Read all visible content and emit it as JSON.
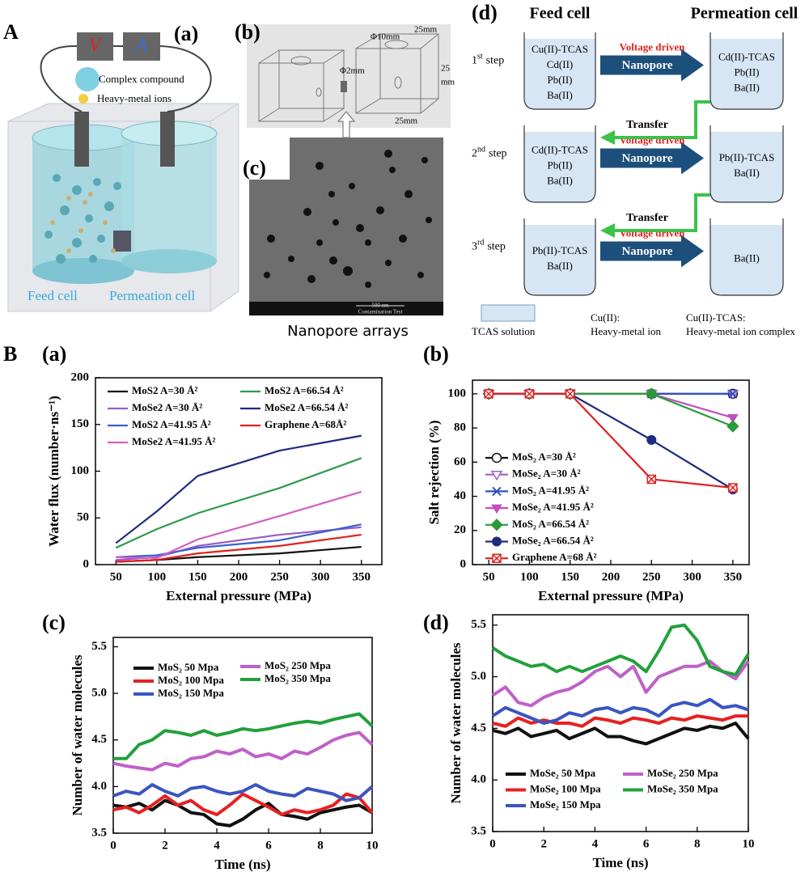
{
  "panel_A": {
    "label": "A",
    "sub_label": "(a)",
    "meter_v": "V",
    "meter_a": "A",
    "legend": [
      "Complex compound",
      "Heavy-metal ions"
    ],
    "feed_cell": "Feed cell",
    "permeation_cell": "Permeation cell"
  },
  "panel_b": {
    "label": "(b)",
    "dims": [
      "Φ10mm",
      "25mm",
      "25",
      "mm",
      "Φ2mm",
      "25mm"
    ]
  },
  "panel_c": {
    "label": "(c)",
    "caption": "Nanopore arrays",
    "scale_bar": "500 nm",
    "info": "Contamination Test"
  },
  "panel_d": {
    "label": "(d)",
    "feed_header": "Feed cell",
    "permeation_header": "Permeation cell",
    "steps": [
      {
        "num": "1",
        "sup": "st",
        "word": "step",
        "feed": [
          "Cu(II)-TCAS",
          "Cd(II)",
          "Pb(II)",
          "Ba(II)"
        ],
        "permeation": [
          "Cd(II)-TCAS",
          "Pb(II)",
          "Ba(II)"
        ],
        "arrow_top": "Voltage driven",
        "arrow_text": "Nanopore"
      },
      {
        "num": "2",
        "sup": "nd",
        "word": "step",
        "feed": [
          "Cd(II)-TCAS",
          "Pb(II)",
          "Ba(II)"
        ],
        "permeation": [
          "Pb(II)-TCAS",
          "Ba(II)"
        ],
        "arrow_top": "Voltage driven",
        "arrow_text": "Nanopore"
      },
      {
        "num": "3",
        "sup": "rd",
        "word": "step",
        "feed": [
          "Pb(II)-TCAS",
          "Ba(II)"
        ],
        "permeation": [
          "Ba(II)"
        ],
        "arrow_top": "Voltage driven",
        "arrow_text": "Nanopore"
      }
    ],
    "transfers": [
      "Transfer",
      "Transfer"
    ],
    "legend": {
      "tcas": "TCAS solution",
      "ion_name": "Cu(II):",
      "ion_desc": "Heavy-metal ion",
      "complex_name": "Cu(II)-TCAS:",
      "complex_desc": "Heavy-metal ion complex"
    }
  },
  "panel_B_label": "B",
  "chart_data": [
    {
      "type": "line",
      "panel_label": "(a)",
      "x_label": "External pressure (MPa)",
      "y_label": "Water flux (number·ns⁻¹)",
      "x": [
        50,
        100,
        150,
        250,
        350
      ],
      "xlim": [
        25,
        375
      ],
      "ylim": [
        0,
        200
      ],
      "xticks": [
        50,
        100,
        150,
        200,
        250,
        300,
        350
      ],
      "yticks": [
        0,
        50,
        100,
        150,
        200
      ],
      "line_width": 2.2,
      "series": [
        {
          "name": "MoS2 A=30 Å²",
          "color": "#111111",
          "values": [
            3,
            5,
            8,
            12,
            19
          ]
        },
        {
          "name": "MoSe2 A=30 Å²",
          "color": "#9a5cc6",
          "values": [
            5,
            8,
            20,
            32,
            40
          ]
        },
        {
          "name": "MoS2 A=41.95 Å²",
          "color": "#3a5fcd",
          "values": [
            8,
            10,
            18,
            26,
            43
          ]
        },
        {
          "name": "MoSe2 A=41.95 Å²",
          "color": "#d060c0",
          "values": [
            8,
            7,
            27,
            52,
            78
          ]
        },
        {
          "name": "MoS2 A=66.54 Å²",
          "color": "#2e9b4a",
          "values": [
            18,
            38,
            55,
            82,
            114
          ]
        },
        {
          "name": "MoSe2 A=66.54 Å²",
          "color": "#1f2a80",
          "values": [
            23,
            57,
            95,
            122,
            138
          ]
        },
        {
          "name": "Graphene A=68Å²",
          "color": "#e02020",
          "values": [
            3,
            5,
            12,
            20,
            32
          ]
        }
      ]
    },
    {
      "type": "line",
      "panel_label": "(b)",
      "x_label": "External pressure (MPa)",
      "y_label": "Salt rejection (%)",
      "x": [
        50,
        100,
        150,
        250,
        350
      ],
      "xlim": [
        30,
        370
      ],
      "ylim": [
        0,
        108
      ],
      "xticks": [
        50,
        100,
        150,
        200,
        250,
        300,
        350
      ],
      "yticks": [
        0,
        20,
        40,
        60,
        80,
        100
      ],
      "line_width": 2.2,
      "series": [
        {
          "name": "MoS₂ A=30 Å²",
          "color": "#111111",
          "marker": "circle-open",
          "values": [
            100,
            100,
            100,
            100,
            100
          ]
        },
        {
          "name": "MoSe₂ A=30 Å²",
          "color": "#a060c0",
          "marker": "triangle-down-open",
          "values": [
            100,
            100,
            100,
            100,
            100
          ]
        },
        {
          "name": "MoS₂ A=41.95 Å²",
          "color": "#3050c0",
          "marker": "x",
          "values": [
            100,
            100,
            100,
            100,
            100
          ]
        },
        {
          "name": "MoSe₂ A=41.95 Å²",
          "color": "#c050c0",
          "marker": "triangle-down",
          "values": [
            100,
            100,
            100,
            100,
            86
          ]
        },
        {
          "name": "MoS₂ A=66.54 Å²",
          "color": "#2a9a3a",
          "marker": "diamond",
          "values": [
            100,
            100,
            100,
            100,
            81
          ]
        },
        {
          "name": "MoSe₂ A=66.54 Å²",
          "color": "#202a80",
          "marker": "circle",
          "values": [
            100,
            100,
            100,
            73,
            44
          ]
        },
        {
          "name": "Graphene A=68 Å²",
          "color": "#e02020",
          "marker": "square-x",
          "values": [
            100,
            100,
            100,
            50,
            45
          ]
        }
      ]
    },
    {
      "type": "line",
      "panel_label": "(c)",
      "x_label": "Time (ns)",
      "y_label": "Number of water molecules",
      "x": [
        0,
        0.5,
        1,
        1.5,
        2,
        2.5,
        3,
        3.5,
        4,
        4.5,
        5,
        5.5,
        6,
        6.5,
        7,
        7.5,
        8,
        8.5,
        9,
        9.5,
        10
      ],
      "xlim": [
        0,
        10
      ],
      "ylim": [
        3.5,
        5.6
      ],
      "xticks": [
        0,
        2,
        4,
        6,
        8,
        10
      ],
      "yticks": [
        3.5,
        {
          "value": 4,
          "label": "4.0"
        },
        4.5,
        {
          "value": 5,
          "label": "5.0"
        },
        5.5
      ],
      "line_width": 4,
      "series": [
        {
          "name": "MoS₂ 50 Mpa",
          "color": "#111111",
          "values": [
            3.8,
            3.78,
            3.82,
            3.75,
            3.85,
            3.8,
            3.72,
            3.7,
            3.6,
            3.58,
            3.65,
            3.75,
            3.82,
            3.7,
            3.68,
            3.65,
            3.72,
            3.75,
            3.78,
            3.8,
            3.72
          ]
        },
        {
          "name": "MoS₂ 100 Mpa",
          "color": "#e82020",
          "values": [
            3.75,
            3.78,
            3.72,
            3.8,
            3.9,
            3.8,
            3.85,
            3.75,
            3.7,
            3.8,
            3.92,
            3.85,
            3.78,
            3.7,
            3.75,
            3.72,
            3.75,
            3.8,
            3.92,
            3.88,
            3.72
          ]
        },
        {
          "name": "MoS₂ 150 Mpa",
          "color": "#3a55c0",
          "values": [
            3.9,
            3.95,
            3.92,
            4.02,
            3.95,
            3.9,
            3.98,
            4.0,
            3.95,
            3.92,
            3.95,
            4.02,
            3.95,
            3.92,
            3.9,
            3.98,
            3.95,
            3.92,
            3.85,
            3.88,
            4.0
          ]
        },
        {
          "name": "MoS₂ 250 Mpa",
          "color": "#c060c8",
          "values": [
            4.25,
            4.22,
            4.2,
            4.18,
            4.25,
            4.22,
            4.3,
            4.32,
            4.38,
            4.35,
            4.4,
            4.32,
            4.35,
            4.3,
            4.38,
            4.35,
            4.42,
            4.5,
            4.55,
            4.58,
            4.45
          ]
        },
        {
          "name": "MoS₂ 350 Mpa",
          "color": "#22a03a",
          "values": [
            4.3,
            4.3,
            4.45,
            4.5,
            4.6,
            4.58,
            4.55,
            4.6,
            4.55,
            4.58,
            4.62,
            4.6,
            4.62,
            4.65,
            4.68,
            4.7,
            4.68,
            4.72,
            4.75,
            4.78,
            4.65
          ]
        }
      ]
    },
    {
      "type": "line",
      "panel_label": "(d)",
      "x_label": "Time (ns)",
      "y_label": "Number of water molecules",
      "x": [
        0,
        0.5,
        1,
        1.5,
        2,
        2.5,
        3,
        3.5,
        4,
        4.5,
        5,
        5.5,
        6,
        6.5,
        7,
        7.5,
        8,
        8.5,
        9,
        9.5,
        10
      ],
      "xlim": [
        0,
        10
      ],
      "ylim": [
        3.5,
        5.6
      ],
      "xticks": [
        0,
        2,
        4,
        6,
        8,
        10
      ],
      "yticks": [
        3.5,
        {
          "value": 4,
          "label": "4.0"
        },
        4.5,
        {
          "value": 5,
          "label": "5.0"
        },
        5.5
      ],
      "line_width": 4,
      "series": [
        {
          "name": "MoSe₂ 50 Mpa",
          "color": "#111111",
          "values": [
            4.48,
            4.45,
            4.5,
            4.42,
            4.45,
            4.48,
            4.4,
            4.45,
            4.5,
            4.42,
            4.42,
            4.38,
            4.35,
            4.4,
            4.45,
            4.5,
            4.48,
            4.52,
            4.5,
            4.55,
            4.4
          ]
        },
        {
          "name": "MoSe₂ 100 Mpa",
          "color": "#e82020",
          "values": [
            4.55,
            4.52,
            4.6,
            4.55,
            4.58,
            4.55,
            4.55,
            4.52,
            4.6,
            4.58,
            4.55,
            4.6,
            4.58,
            4.55,
            4.6,
            4.58,
            4.62,
            4.6,
            4.58,
            4.62,
            4.62
          ]
        },
        {
          "name": "MoSe₂ 150 Mpa",
          "color": "#3a55c0",
          "values": [
            4.62,
            4.7,
            4.65,
            4.6,
            4.55,
            4.58,
            4.65,
            4.62,
            4.68,
            4.7,
            4.65,
            4.7,
            4.68,
            4.62,
            4.72,
            4.75,
            4.72,
            4.78,
            4.7,
            4.72,
            4.68
          ]
        },
        {
          "name": "MoSe₂ 250 Mpa",
          "color": "#c060c8",
          "values": [
            4.82,
            4.9,
            4.75,
            4.72,
            4.8,
            4.85,
            4.88,
            4.95,
            5.05,
            5.1,
            5.0,
            5.1,
            4.85,
            5.0,
            5.05,
            5.1,
            5.1,
            5.15,
            5.05,
            4.98,
            5.15
          ]
        },
        {
          "name": "MoSe₂ 350 Mpa",
          "color": "#22a03a",
          "values": [
            5.28,
            5.2,
            5.15,
            5.1,
            5.12,
            5.05,
            5.1,
            5.05,
            5.1,
            5.15,
            5.2,
            5.15,
            5.05,
            5.25,
            5.48,
            5.5,
            5.35,
            5.1,
            5.05,
            5.02,
            5.22
          ]
        }
      ]
    }
  ]
}
